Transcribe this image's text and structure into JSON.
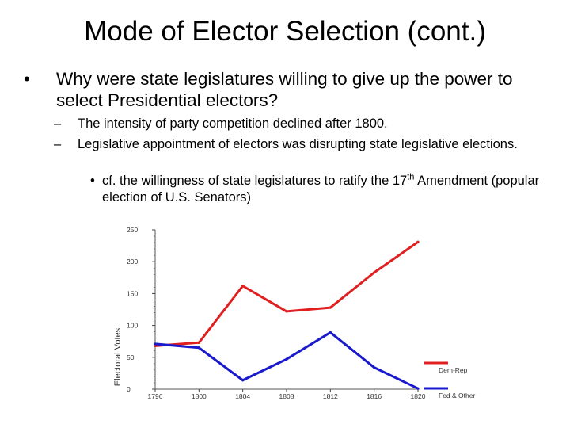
{
  "slide": {
    "title": "Mode of Elector Selection (cont.)",
    "bullets": {
      "main_mark": "•",
      "main": "Why were state legislatures willing to give up the power to select Presidential electors?",
      "sub_mark": "–",
      "sub1": "The intensity of party competition declined after 1800.",
      "sub2": "Legislative appointment of electors was disrupting state legislative elections.",
      "sub2_child_mark": "•",
      "sub2_child_before": "cf. the willingness of state legislatures to ratify the 17",
      "sub2_child_sup": "th",
      "sub2_child_after": " Amendment (popular election of U.S. Senators)"
    }
  },
  "chart_data": {
    "type": "line",
    "ylabel": "Electoral Votes",
    "xlabel": "",
    "x": [
      1796,
      1800,
      1804,
      1808,
      1812,
      1816,
      1820
    ],
    "x_tick_labels": [
      "1796",
      "1800",
      "1804",
      "1808",
      "1812",
      "1816",
      "1820"
    ],
    "ylim": [
      0,
      250
    ],
    "y_ticks": [
      0,
      50,
      100,
      150,
      200,
      250
    ],
    "series": [
      {
        "name": "Dem-Rep",
        "color": "#e02020",
        "values": [
          68,
          73,
          162,
          122,
          128,
          183,
          231
        ]
      },
      {
        "name": "Fed & Other",
        "color": "#1a1acc",
        "values": [
          71,
          65,
          14,
          47,
          89,
          34,
          1
        ]
      }
    ],
    "legend_placement": "bottom-right",
    "grid": false
  }
}
